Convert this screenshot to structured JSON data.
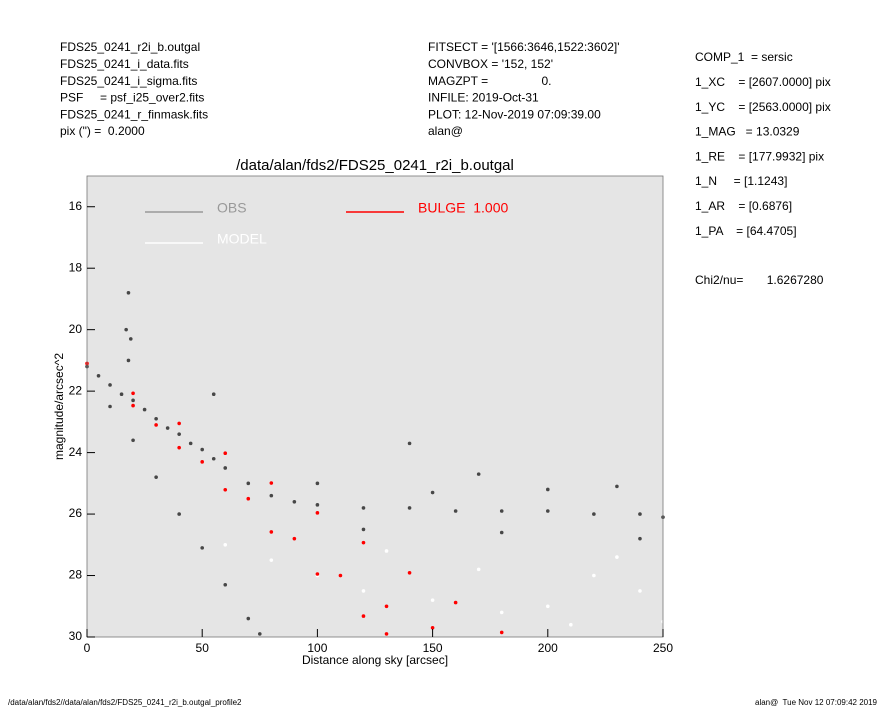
{
  "header": {
    "left": [
      "FDS25_0241_r2i_b.outgal",
      "FDS25_0241_i_data.fits",
      "FDS25_0241_i_sigma.fits",
      "PSF     = psf_i25_over2.fits",
      "FDS25_0241_r_finmask.fits",
      "pix (\") =  0.2000"
    ],
    "middle": [
      "FITSECT = '[1566:3646,1522:3602]'",
      "CONVBOX = '152, 152'",
      "MAGZPT =                0.",
      "INFILE: 2019-Oct-31",
      "PLOT: 12-Nov-2019 07:09:39.00",
      "alan@"
    ],
    "right": [
      "COMP_1  = sersic",
      "1_XC    = [2607.0000] pix",
      "1_YC    = [2563.0000] pix",
      "1_MAG   = 13.0329",
      "1_RE    = [177.9932] pix",
      "1_N     = [1.1243]",
      "1_AR    = [0.6876]",
      "1_PA    = [64.4705]"
    ],
    "chi2": "Chi2/nu=       1.6267280"
  },
  "footer": {
    "left": "/data/alan/fds2//data/alan/fds2/FDS25_0241_r2i_b.outgal_profile2",
    "right": "alan@  Tue Nov 12 07:09:42 2019"
  },
  "chart_data": {
    "type": "scatter",
    "title": "/data/alan/fds2/FDS25_0241_r2i_b.outgal",
    "x_label": "Distance along sky [arcsec]",
    "y_label": "magnitude/arcsec^2",
    "xlim": [
      0,
      250
    ],
    "ylim": [
      15,
      30
    ],
    "y_inverted": true,
    "xticks": [
      0,
      50,
      100,
      150,
      200,
      250
    ],
    "yticks": [
      16,
      18,
      20,
      22,
      24,
      26,
      28,
      30
    ],
    "background": "#e5e5e5",
    "series": [
      {
        "name": "OBS",
        "color": "#474747",
        "legend_color": "#999999",
        "x": [
          0,
          5,
          10,
          15,
          20,
          25,
          30,
          35,
          40,
          45,
          50,
          55,
          60,
          70,
          80,
          90,
          100,
          120,
          140,
          160,
          180,
          200,
          220,
          240,
          250,
          18,
          17,
          19,
          18,
          55,
          170,
          140,
          230,
          10,
          20,
          30,
          40,
          50,
          60,
          70,
          75,
          100,
          150,
          200,
          120,
          180,
          240
        ],
        "values": [
          21.2,
          21.5,
          21.8,
          22.1,
          22.3,
          22.6,
          22.9,
          23.2,
          23.4,
          23.7,
          23.9,
          24.2,
          24.5,
          25,
          25.4,
          25.6,
          25.7,
          25.8,
          25.8,
          25.9,
          25.9,
          25.9,
          26,
          26,
          26.1,
          18.8,
          20,
          20.3,
          21,
          22.1,
          24.7,
          23.7,
          25.1,
          22.5,
          23.6,
          24.8,
          26,
          27.1,
          28.3,
          29.4,
          29.9,
          25,
          25.3,
          25.2,
          26.5,
          26.6,
          26.8
        ]
      },
      {
        "name": "MODEL",
        "color": "#ffffff",
        "legend_color": "#ffffff",
        "x": [
          60,
          80,
          100,
          120,
          150,
          180,
          200,
          220,
          240,
          250,
          130,
          170,
          210,
          230
        ],
        "values": [
          27,
          27.5,
          28,
          28.5,
          28.8,
          29.2,
          29,
          28,
          28.5,
          29.5,
          27.2,
          27.8,
          29.6,
          27.4
        ]
      },
      {
        "name": "BULGE  1.000",
        "color": "#ff0000",
        "legend_color": "#ff0000",
        "x": [
          0,
          20,
          40,
          60,
          80,
          100,
          120,
          140,
          160,
          180,
          20,
          40,
          60,
          80,
          100,
          120,
          130,
          30,
          50,
          70,
          90,
          110,
          130,
          150
        ],
        "values": [
          21.1,
          22.07,
          23.05,
          24.02,
          24.99,
          25.96,
          26.93,
          27.91,
          28.88,
          29.85,
          22.47,
          23.84,
          25.21,
          26.58,
          27.95,
          29.32,
          29.9,
          23.1,
          24.3,
          25.5,
          26.8,
          28,
          29,
          29.7
        ]
      }
    ]
  }
}
